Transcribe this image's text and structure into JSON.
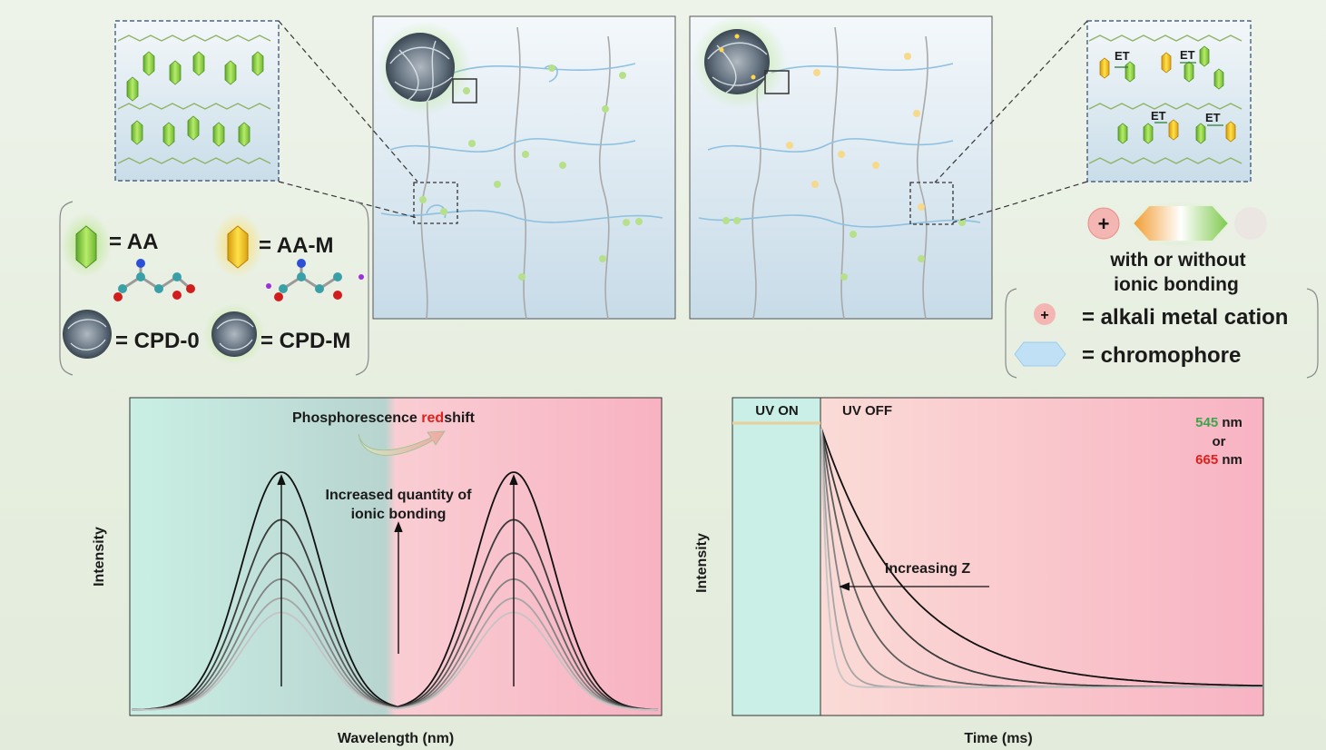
{
  "legend_left": {
    "aa": "= AA",
    "aam": "= AA-M",
    "cpd0": "= CPD-0",
    "cpdm": "= CPD-M"
  },
  "legend_right": {
    "ionic_line1": "with or without",
    "ionic_line2": "ionic bonding",
    "cation": "= alkali metal cation",
    "chromophore": "= chromophore"
  },
  "et_label": "ET",
  "spectrum": {
    "title_pre": "Phosphorescence ",
    "title_red": "red",
    "title_post": "shift",
    "annot_line1": "Increased quantity of",
    "annot_line2": "ionic bonding",
    "xlabel": "Wavelength (nm)",
    "ylabel": "Intensity"
  },
  "decay": {
    "uv_on": "UV ON",
    "uv_off": "UV OFF",
    "wl1": "545",
    "wl_unit": "nm",
    "wl_or": "or",
    "wl2": "665",
    "annot": "Increasing Z",
    "xlabel": "Time (ms)",
    "ylabel": "Intensity"
  },
  "colors": {
    "green": "#3fa34d",
    "red": "#e0201a",
    "blue_fiber": "#8ec0df",
    "gray_fiber": "#a9a9a9",
    "crystal_green": "#8cd14a",
    "crystal_yellow": "#f2c21b"
  }
}
